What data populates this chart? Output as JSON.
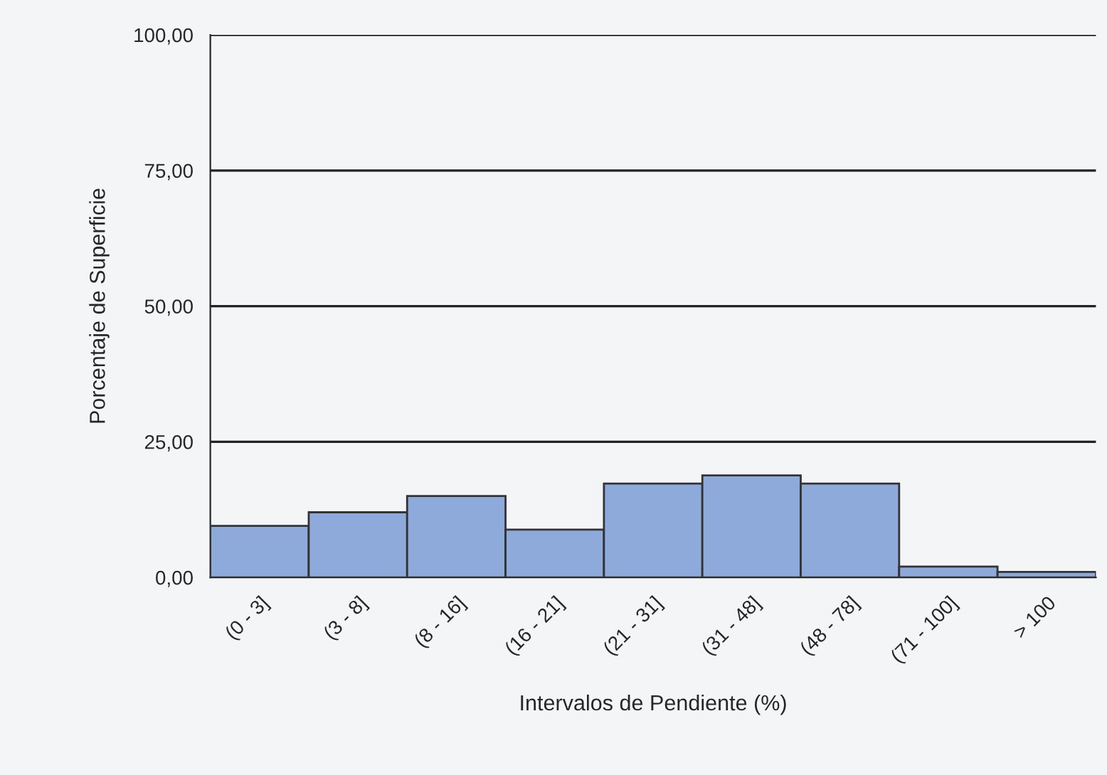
{
  "chart_data": {
    "type": "bar",
    "xlabel": "Intervalos de Pendiente (%)",
    "ylabel": "Porcentaje de Superficie",
    "categories": [
      "(0 - 3]",
      "(3 - 8]",
      "(8 - 16]",
      "(16 - 21]",
      "(21 - 31]",
      "(31 - 48]",
      "(48 - 78]",
      "(71 - 100]",
      "> 100"
    ],
    "values": [
      9.5,
      12,
      15,
      8.8,
      17.3,
      18.8,
      17.3,
      2,
      1
    ],
    "color": "#8eaadb",
    "ylim": [
      0,
      100
    ],
    "yticks": [
      {
        "value": 0,
        "label": "0,00"
      },
      {
        "value": 25,
        "label": "25,00"
      },
      {
        "value": 50,
        "label": "50,00"
      },
      {
        "value": 75,
        "label": "75,00"
      },
      {
        "value": 100,
        "label": "100,00"
      }
    ],
    "grid": "y"
  }
}
